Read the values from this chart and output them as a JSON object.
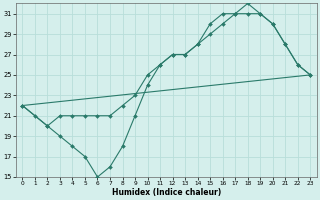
{
  "xlabel": "Humidex (Indice chaleur)",
  "bg_color": "#d5efec",
  "line_color": "#2a7a6a",
  "grid_color": "#b8deda",
  "xlim": [
    -0.5,
    23.5
  ],
  "ylim": [
    15,
    32
  ],
  "xticks": [
    0,
    1,
    2,
    3,
    4,
    5,
    6,
    7,
    8,
    9,
    10,
    11,
    12,
    13,
    14,
    15,
    16,
    17,
    18,
    19,
    20,
    21,
    22,
    23
  ],
  "yticks": [
    15,
    17,
    19,
    21,
    23,
    25,
    27,
    29,
    31
  ],
  "line1_x": [
    0,
    1,
    2,
    3,
    4,
    5,
    6,
    7,
    8,
    9,
    10,
    11,
    12,
    13,
    14,
    15,
    16,
    17,
    18,
    19,
    20,
    21,
    22,
    23
  ],
  "line1_y": [
    22,
    21,
    20,
    19,
    18,
    17,
    15,
    16,
    18,
    21,
    24,
    26,
    27,
    27,
    28,
    30,
    31,
    31,
    32,
    31,
    30,
    28,
    26,
    25
  ],
  "line2_x": [
    0,
    2,
    3,
    4,
    5,
    6,
    7,
    8,
    9,
    10,
    11,
    12,
    13,
    14,
    15,
    16,
    17,
    18,
    19,
    20,
    21,
    22,
    23
  ],
  "line2_y": [
    22,
    20,
    21,
    21,
    21,
    21,
    21,
    22,
    23,
    25,
    26,
    27,
    27,
    28,
    29,
    30,
    31,
    31,
    31,
    30,
    28,
    26,
    25
  ],
  "line3_x": [
    0,
    23
  ],
  "line3_y": [
    22,
    25
  ],
  "markersize": 2.0
}
